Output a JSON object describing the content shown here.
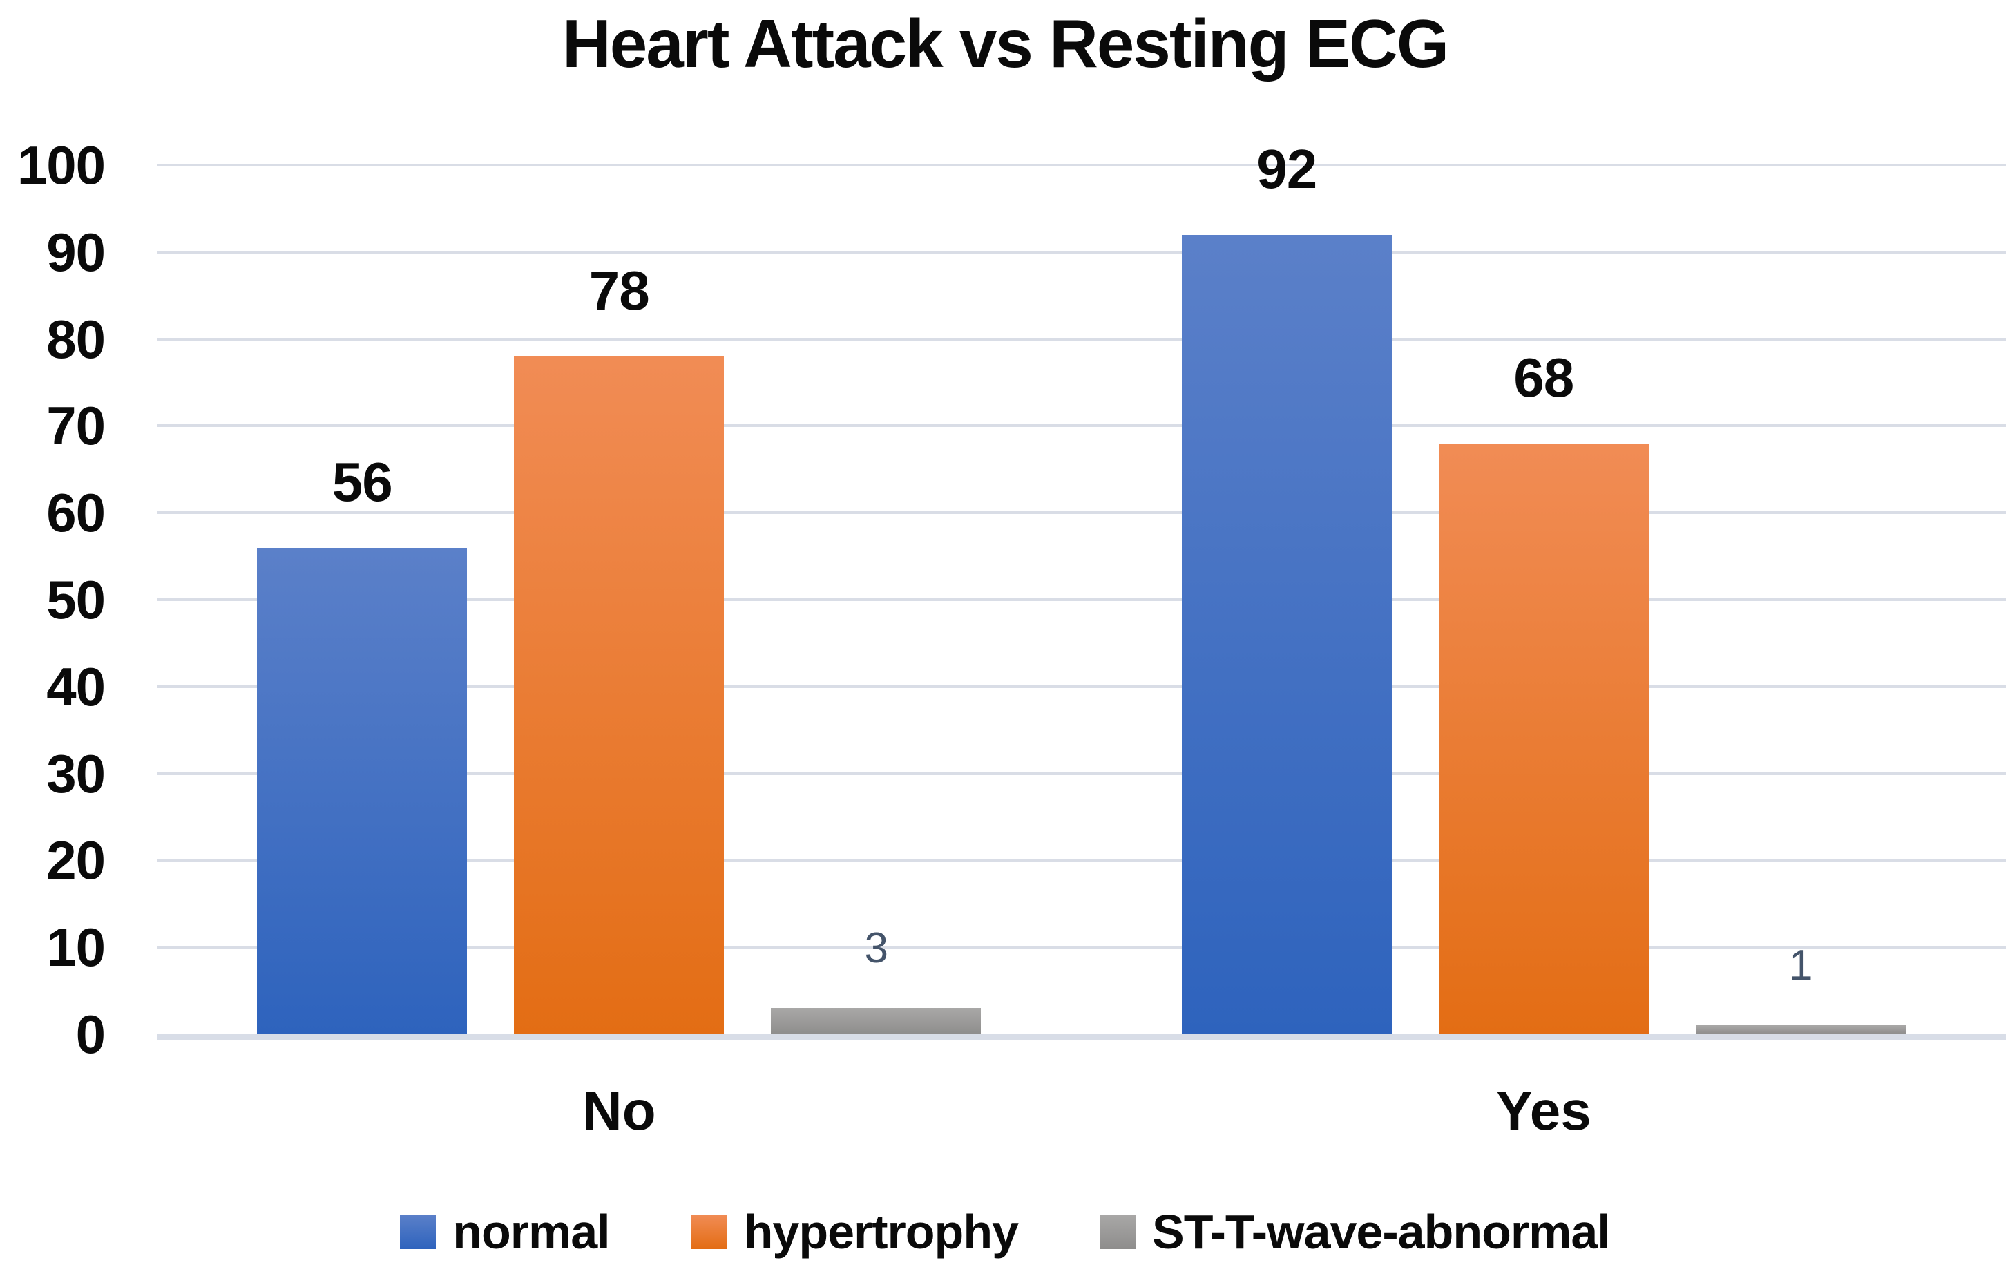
{
  "chart_data": {
    "type": "bar",
    "title": "Heart Attack vs Resting ECG",
    "categories": [
      "No",
      "Yes"
    ],
    "series": [
      {
        "name": "normal",
        "values": [
          56,
          92
        ],
        "fill_top": "#5B80C9",
        "fill_bottom": "#2E63BD",
        "data_label_color": "#0A0A0A",
        "data_label_weight": "bold"
      },
      {
        "name": "hypertrophy",
        "values": [
          78,
          68
        ],
        "fill_top": "#F18C55",
        "fill_bottom": "#E36D14",
        "data_label_color": "#0A0A0A",
        "data_label_weight": "bold"
      },
      {
        "name": "ST-T-wave-abnormal",
        "values": [
          3,
          1
        ],
        "fill_top": "#A9A8A7",
        "fill_bottom": "#8E8D8C",
        "data_label_color": "#44546A",
        "data_label_weight": "normal"
      }
    ],
    "xlabel": "",
    "ylabel": "",
    "ylim": [
      0,
      100
    ],
    "yticks": [
      0,
      10,
      20,
      30,
      40,
      50,
      60,
      70,
      80,
      90,
      100
    ],
    "grid": true,
    "legend_position": "bottom",
    "colors": {
      "gridline": "#D9DDE6",
      "axis_line": "#D8DDE7",
      "background": "#FFFFFF"
    }
  }
}
